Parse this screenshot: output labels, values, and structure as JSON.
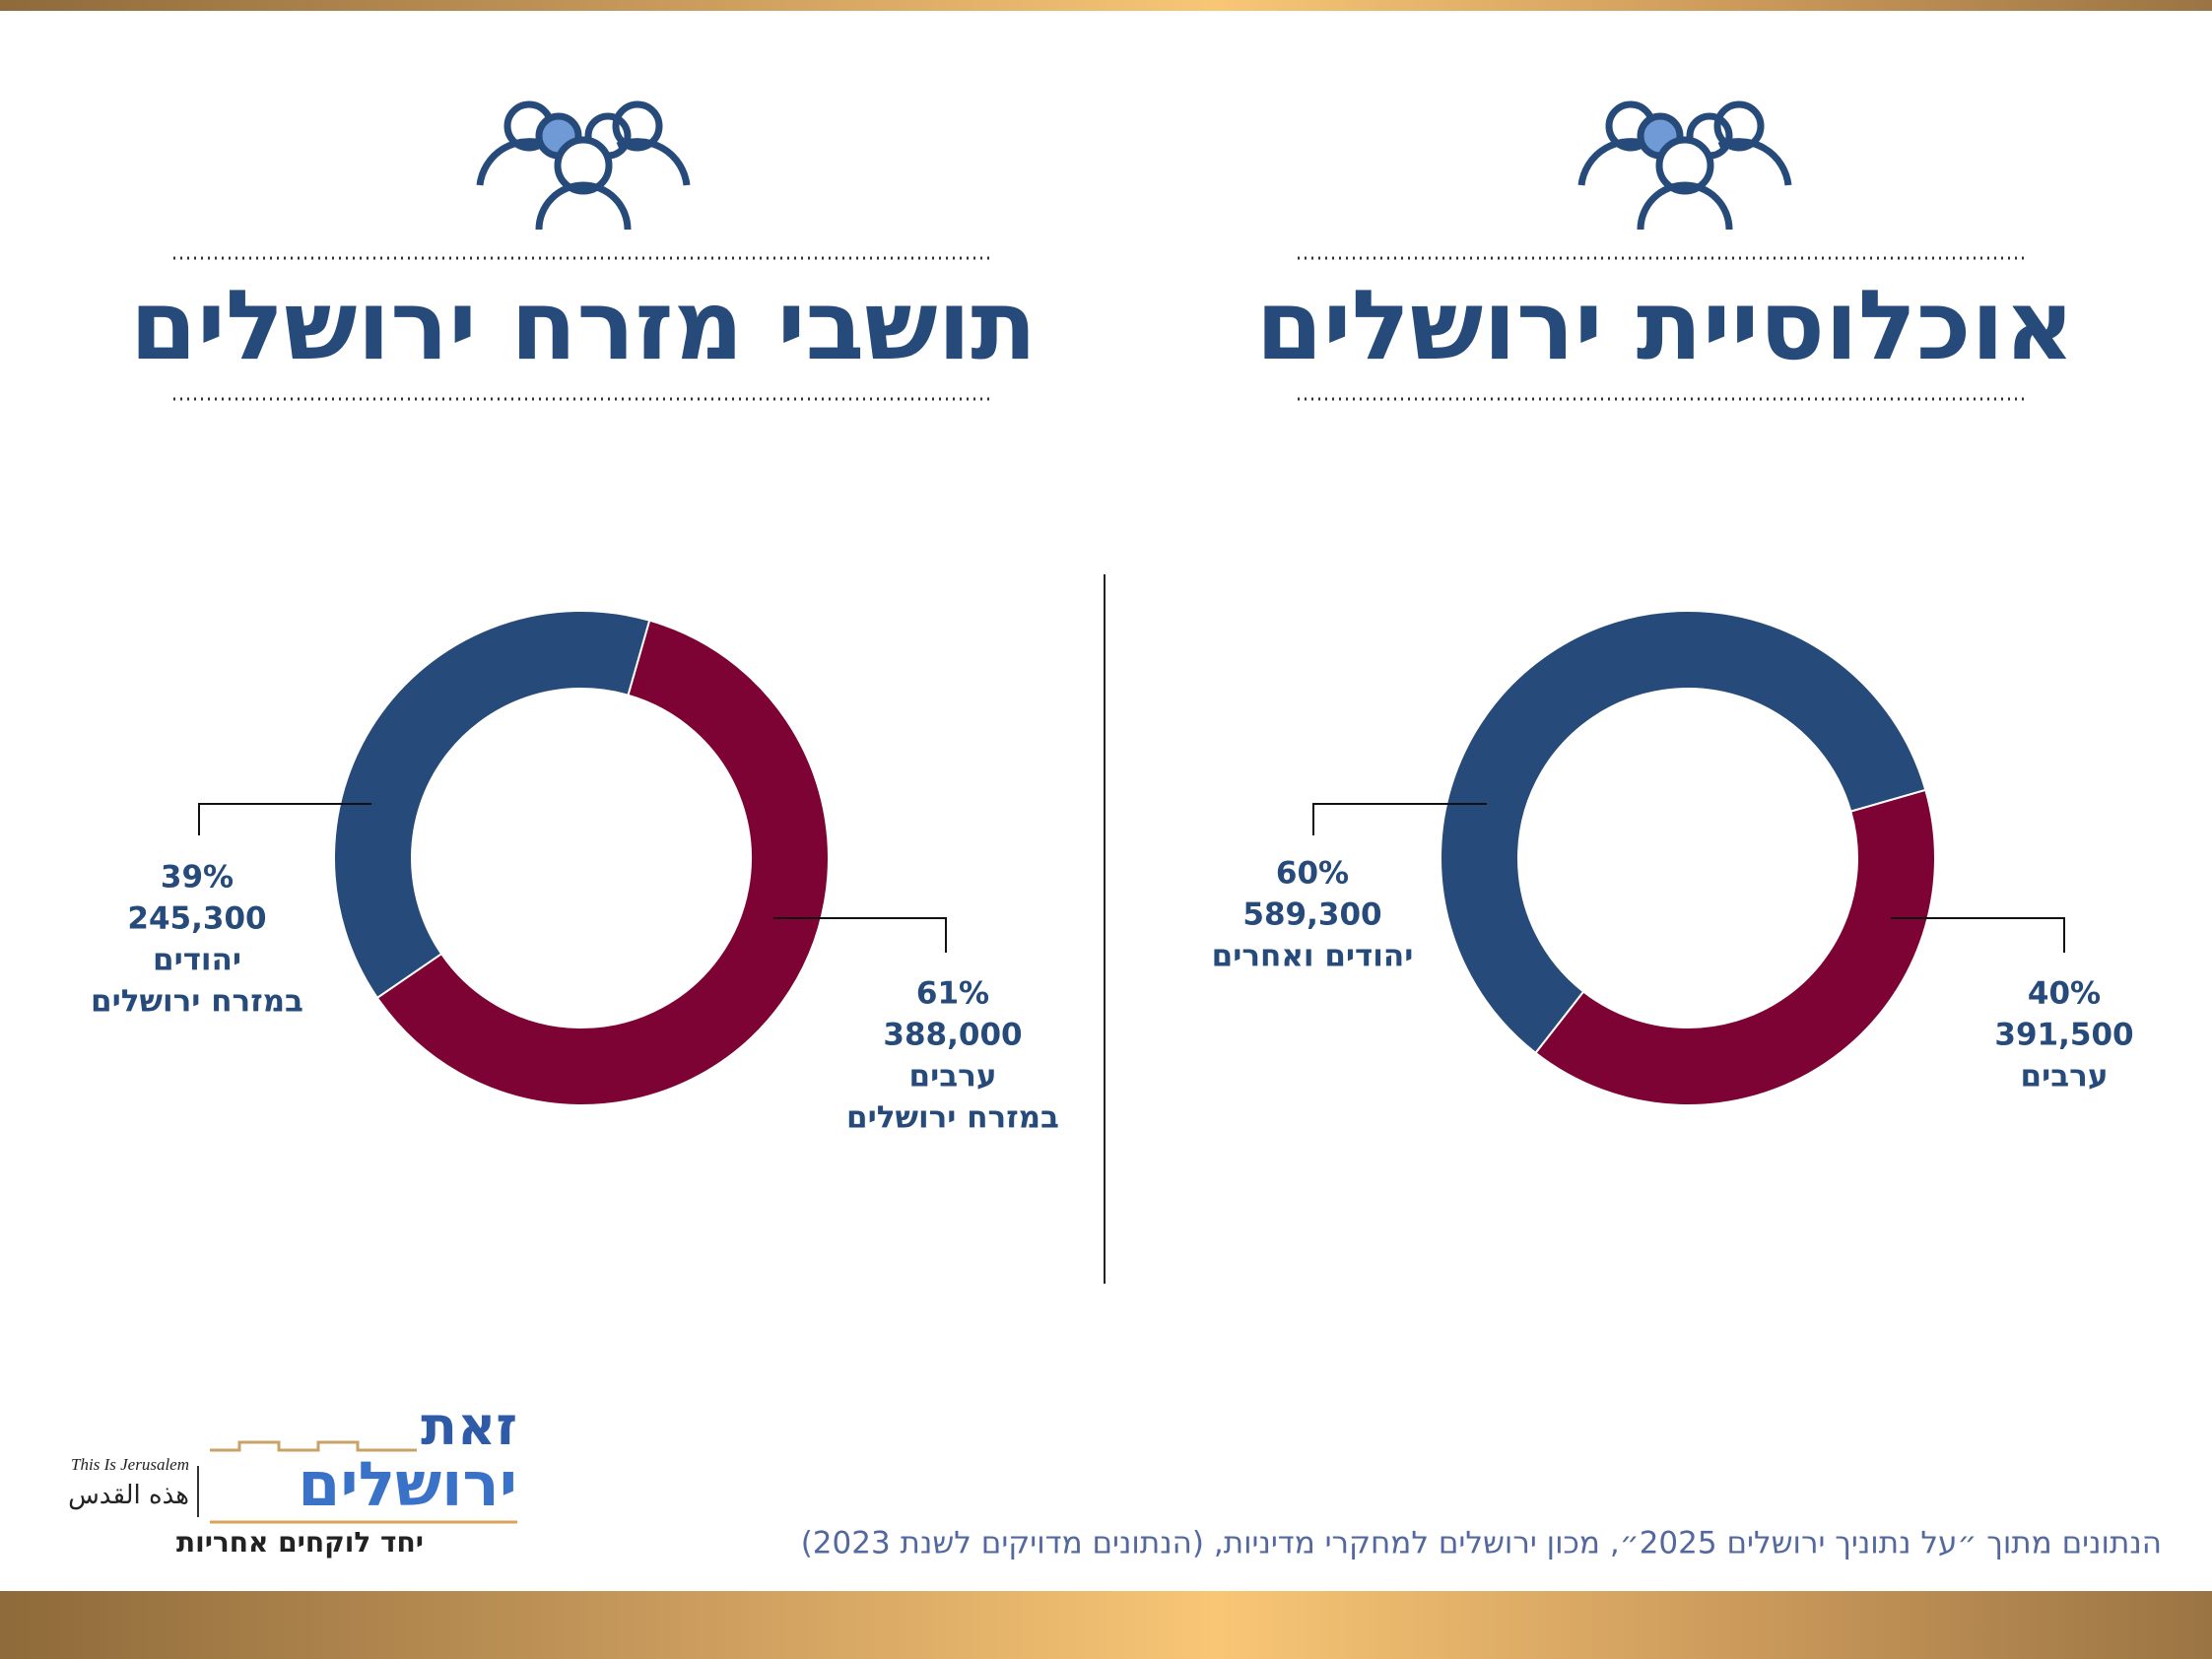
{
  "chart_data": [
    {
      "type": "pie",
      "title": "אוכלוסיית ירושלים",
      "categories": [
        [
          "יהודים ואחרים"
        ],
        [
          "ערבים"
        ]
      ],
      "values": [
        60,
        40
      ],
      "value_labels": [
        "60%",
        "40%"
      ],
      "counts": [
        589300,
        391500
      ],
      "count_labels": [
        "589,300",
        "391,500"
      ],
      "colors": [
        "#264a7a",
        "#7c0333"
      ]
    },
    {
      "type": "pie",
      "title": "תושבי מזרח ירושלים",
      "categories": [
        [
          "יהודים",
          "במזרח ירושלים"
        ],
        [
          "ערבים",
          "במזרח ירושלים"
        ]
      ],
      "values": [
        39,
        61
      ],
      "value_labels": [
        "39%",
        "61%"
      ],
      "counts": [
        245300,
        388000
      ],
      "count_labels": [
        "245,300",
        "388,000"
      ],
      "colors": [
        "#264a7a",
        "#7c0333"
      ]
    }
  ],
  "source": "הנתונים מתוך ״על נתוניך ירושלים 2025״, מכון ירושלים למחקרי מדיניות, (הנתונים מדויקים לשנת 2023)",
  "logo": {
    "name_line1": "זאת",
    "name_line2": "ירושלים",
    "english": "This Is Jerusalem",
    "arabic": "هذه القدس",
    "slogan": "יחד לוקחים אחריות"
  }
}
